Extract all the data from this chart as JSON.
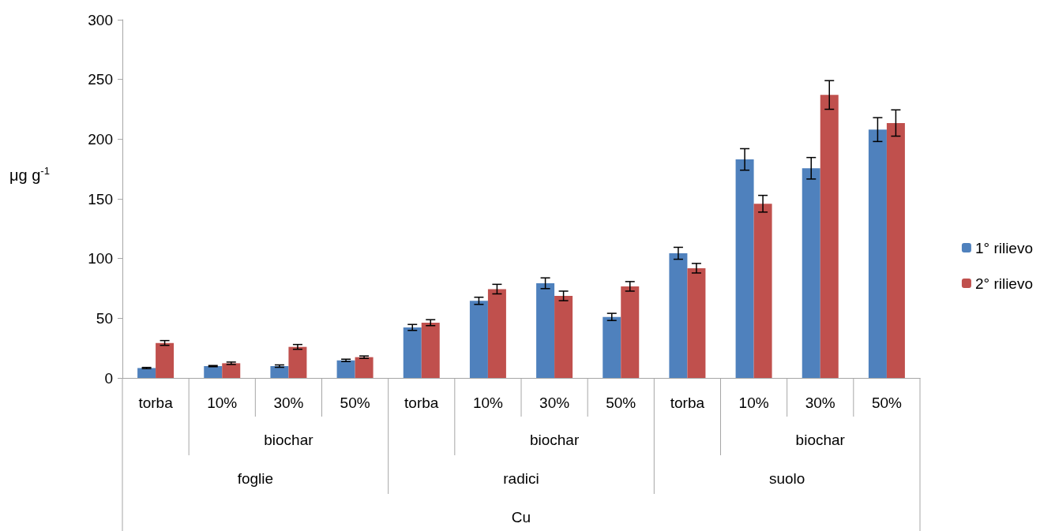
{
  "chart_data": {
    "type": "bar",
    "ylabel": "μg g$^{-1}$",
    "categories": [
      "torba",
      "10%",
      "30%",
      "50%",
      "torba",
      "10%",
      "30%",
      "50%",
      "torba",
      "10%",
      "30%",
      "50%"
    ],
    "annotations": [
      "biochar",
      "biochar",
      "biochar",
      "foglie",
      "radici",
      "suolo",
      "Cu"
    ],
    "series": [
      {
        "name": "1° rilievo",
        "color": "#4f81bd",
        "values": [
          8.3,
          9.9,
          9.9,
          14.7,
          42.3,
          64.6,
          79.3,
          51.1,
          104.4,
          183,
          175.6,
          208
        ],
        "errors": [
          0.5,
          0.5,
          1,
          1,
          2.5,
          3,
          4.5,
          3,
          5,
          9,
          9,
          10
        ]
      },
      {
        "name": "2° rilievo",
        "color": "#c0504d",
        "values": [
          29.3,
          12.3,
          26,
          17.4,
          46.3,
          74.4,
          68.7,
          76.7,
          91.9,
          145.9,
          237,
          213.5
        ],
        "errors": [
          2,
          1,
          2,
          1,
          2.5,
          4,
          4,
          4,
          4,
          7,
          12,
          11
        ]
      }
    ],
    "ylim": [
      0,
      300
    ],
    "yticks": [
      0,
      50,
      100,
      150,
      200,
      250,
      300
    ],
    "grid": false,
    "legend": "right"
  }
}
